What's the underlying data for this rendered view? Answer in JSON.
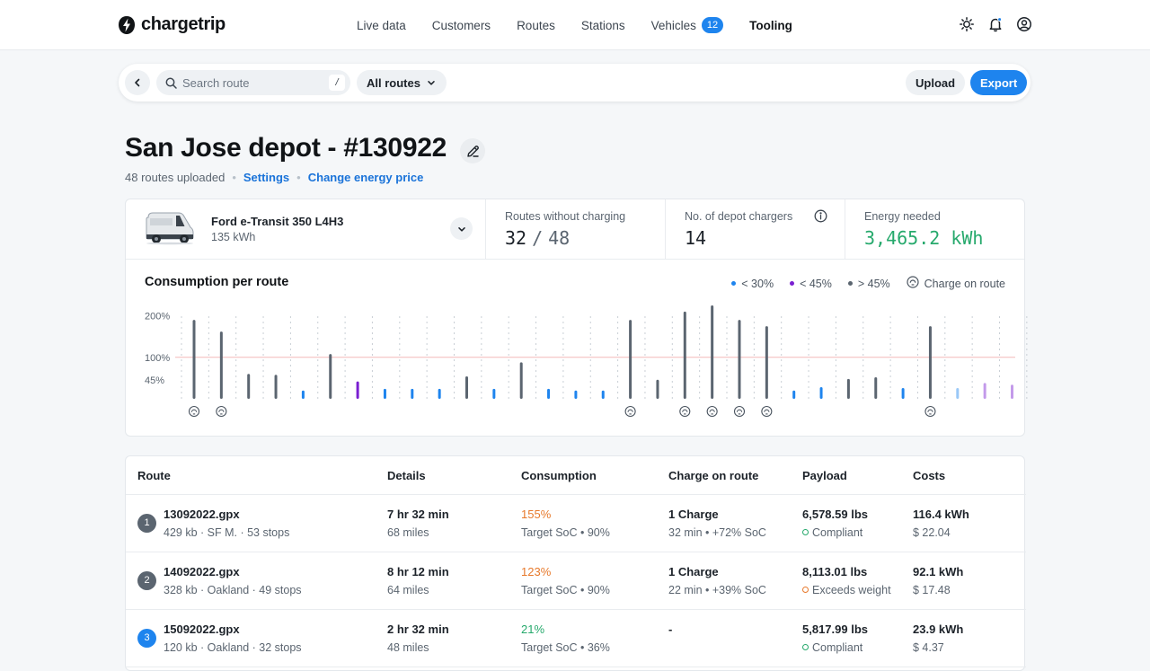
{
  "app": {
    "brand": "chargetrip"
  },
  "nav": {
    "items": [
      {
        "label": "Live data",
        "name": "nav-live-data",
        "active": false
      },
      {
        "label": "Customers",
        "name": "nav-customers",
        "active": false
      },
      {
        "label": "Routes",
        "name": "nav-routes",
        "active": false
      },
      {
        "label": "Stations",
        "name": "nav-stations",
        "active": false
      },
      {
        "label": "Vehicles",
        "name": "nav-vehicles",
        "active": false,
        "badge": "12"
      },
      {
        "label": "Tooling",
        "name": "nav-tooling",
        "active": true
      }
    ],
    "icons": [
      "sun-icon",
      "bell-icon",
      "user-circle-icon"
    ]
  },
  "toolbar": {
    "search_placeholder": "Search route",
    "search_shortcut": "/",
    "filter_label": "All routes",
    "upload_label": "Upload",
    "export_label": "Export"
  },
  "page": {
    "title": "San Jose depot - #130922",
    "routes_uploaded": "48 routes uploaded",
    "settings_link": "Settings",
    "energy_price_link": "Change energy price"
  },
  "vehicle": {
    "name": "Ford e-Transit 350 L4H3",
    "capacity": "135 kWh"
  },
  "stats": {
    "routes_without_charging_label": "Routes without charging",
    "routes_without_charging": "32",
    "routes_total": "48",
    "depot_chargers_label": "No. of depot chargers",
    "depot_chargers": "14",
    "energy_needed_label": "Energy needed",
    "energy_needed": "3,465.2 kWh"
  },
  "chart_data": {
    "type": "bar",
    "title": "Consumption per route",
    "y_ticks": [
      "200%",
      "100%",
      "45%"
    ],
    "y_tick_values": [
      200,
      100,
      45
    ],
    "reference_line": 100,
    "ylim": [
      0,
      225
    ],
    "legend": [
      {
        "label": "< 30%",
        "color": "#1e84ee"
      },
      {
        "label": "< 45%",
        "color": "#7a1fd1"
      },
      {
        "label": "> 45%",
        "color": "#5b6570"
      },
      {
        "label": "Charge on route",
        "icon": "charge-station-icon"
      }
    ],
    "values": [
      190,
      162,
      60,
      58,
      20,
      108,
      42,
      24,
      24,
      24,
      54,
      24,
      88,
      24,
      20,
      20,
      190,
      46,
      210,
      225,
      190,
      175,
      20,
      28,
      48,
      52,
      26,
      175,
      26,
      38,
      34
    ],
    "charge_on_route": [
      true,
      true,
      false,
      false,
      false,
      false,
      false,
      false,
      false,
      false,
      false,
      false,
      false,
      false,
      false,
      false,
      true,
      false,
      true,
      true,
      true,
      true,
      false,
      false,
      false,
      false,
      false,
      true,
      false,
      false,
      false
    ],
    "faded": [
      false,
      false,
      false,
      false,
      false,
      false,
      false,
      false,
      false,
      false,
      false,
      false,
      false,
      false,
      false,
      false,
      false,
      false,
      false,
      false,
      false,
      false,
      false,
      false,
      false,
      false,
      false,
      false,
      true,
      true,
      true
    ]
  },
  "table": {
    "headers": [
      "Route",
      "Details",
      "Consumption",
      "Charge on route",
      "Payload",
      "Costs"
    ],
    "rows": [
      {
        "num": "1",
        "file": "13092022.gpx",
        "meta": "429 kb  ·  SF M.  ·  53 stops",
        "duration": "7 hr 32 min",
        "distance": "68 miles",
        "consumption": "155%",
        "consumption_color": "orange",
        "target": "Target SoC • 90%",
        "charge": "1 Charge",
        "charge_detail": "32 min  • +72% SoC",
        "payload": "6,578.59 lbs",
        "payload_status": "Compliant",
        "payload_ok": true,
        "energy": "116.4 kWh",
        "cost": "$ 22.04"
      },
      {
        "num": "2",
        "file": "14092022.gpx",
        "meta": "328 kb  ·  Oakland  ·  49 stops",
        "duration": "8 hr 12 min",
        "distance": "64 miles",
        "consumption": "123%",
        "consumption_color": "orange",
        "target": "Target SoC • 90%",
        "charge": "1 Charge",
        "charge_detail": "22 min • +39% SoC",
        "payload": "8,113.01 lbs",
        "payload_status": "Exceeds weight",
        "payload_ok": false,
        "energy": "92.1 kWh",
        "cost": "$ 17.48"
      },
      {
        "num": "3",
        "file": "15092022.gpx",
        "meta": "120 kb  ·  Oakland  ·  32 stops",
        "duration": "2 hr 32 min",
        "distance": "48 miles",
        "consumption": "21%",
        "consumption_color": "green",
        "target": "Target SoC • 36%",
        "charge": "-",
        "charge_detail": "",
        "payload": "5,817.99 lbs",
        "payload_status": "Compliant",
        "payload_ok": true,
        "energy": "23.9 kWh",
        "cost": "$ 4.37"
      }
    ]
  }
}
